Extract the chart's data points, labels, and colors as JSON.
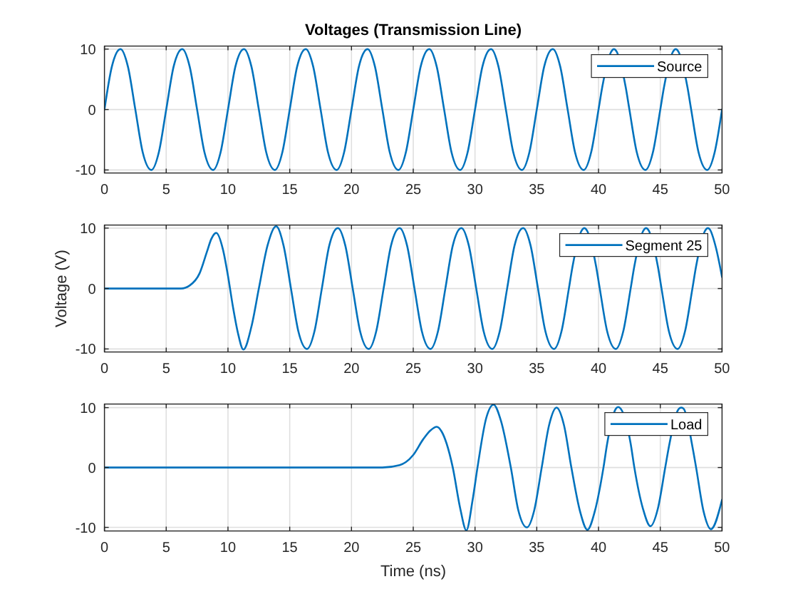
{
  "chart_data": [
    {
      "type": "line",
      "title": "Voltages (Transmission Line)",
      "x": [
        0,
        0.6,
        1.3,
        1.9,
        2.5,
        3.1,
        3.8,
        4.4,
        5,
        5.6,
        6.3,
        6.9,
        7.5,
        8.1,
        8.8,
        9.4,
        10,
        10.6,
        11.3,
        11.9,
        12.5,
        13.1,
        13.8,
        14.4,
        15,
        15.6,
        16.3,
        16.9,
        17.5,
        18.1,
        18.8,
        19.4,
        20,
        20.6,
        21.3,
        21.9,
        22.5,
        23.1,
        23.8,
        24.4,
        25,
        25.6,
        26.3,
        26.9,
        27.5,
        28.1,
        28.8,
        29.4,
        30,
        30.6,
        31.3,
        31.9,
        32.5,
        33.1,
        33.8,
        34.4,
        35,
        35.6,
        36.3,
        36.9,
        37.5,
        38.1,
        38.8,
        39.4,
        40,
        40.3,
        41.1,
        41.25,
        41.4,
        42.2,
        42.5,
        43.1,
        43.8,
        44.4,
        45,
        45.3,
        46.1,
        46.25,
        46.4,
        47.2,
        47.5,
        48.1,
        48.8,
        49.4,
        50
      ],
      "series": [
        {
          "name": "Source",
          "color": "#0072bd",
          "values": [
            0,
            7.1,
            10,
            7.1,
            0,
            -7.1,
            -10,
            -7.1,
            0,
            7.1,
            10,
            7.1,
            0,
            -7.1,
            -10,
            -7.1,
            0,
            7.1,
            10,
            7.1,
            0,
            -7.1,
            -10,
            -7.1,
            0,
            7.1,
            10,
            7.1,
            0,
            -7.1,
            -10,
            -7.1,
            0,
            7.1,
            10,
            7.1,
            0,
            -7.1,
            -10,
            -7.1,
            0,
            7.1,
            10,
            7.1,
            0,
            -7.1,
            -10,
            -7.1,
            0,
            7.1,
            10,
            7.1,
            0,
            -7.1,
            -10,
            -7.1,
            0,
            7.1,
            10,
            7.1,
            0,
            -7.1,
            -10,
            -7.1,
            0,
            3.7,
            9.8,
            10,
            9.8,
            3.7,
            0,
            -7.1,
            -10,
            -7.1,
            0,
            3.7,
            9.8,
            10,
            9.8,
            3.7,
            0,
            -7.1,
            -10,
            -7.1,
            0
          ]
        }
      ],
      "xlim": [
        0,
        50
      ],
      "xticks": [
        0,
        5,
        10,
        15,
        20,
        25,
        30,
        35,
        40,
        45,
        50
      ],
      "ylim": [
        -10.5,
        10.5
      ],
      "yticks": [
        -10,
        0,
        10
      ],
      "grid": true,
      "legend": "top right"
    },
    {
      "type": "line",
      "ylabel": "Voltage (V)",
      "x": [
        0,
        6.2,
        6.9,
        7.7,
        8.3,
        8.65,
        9.05,
        9.6,
        10,
        10.4,
        10.8,
        11.25,
        11.9,
        12.5,
        13.2,
        13.9,
        14.5,
        15.1,
        15.7,
        16.4,
        17,
        17.6,
        18.2,
        18.9,
        19.5,
        20.1,
        20.7,
        21.4,
        22,
        22.6,
        23.2,
        23.9,
        24.5,
        25.1,
        25.7,
        26.4,
        27,
        27.6,
        28.2,
        28.9,
        29.5,
        30.1,
        30.7,
        31.4,
        32,
        32.6,
        33.2,
        33.9,
        34.5,
        35.1,
        35.7,
        36.4,
        37,
        37.6,
        37.9,
        38.7,
        38.85,
        39,
        39.8,
        40.1,
        40.7,
        41.4,
        42,
        42.6,
        42.9,
        43.7,
        43.85,
        44,
        44.8,
        45.1,
        45.7,
        46.4,
        47,
        47.6,
        47.9,
        48.7,
        48.85,
        49,
        49.5,
        50
      ],
      "series": [
        {
          "name": "Segment 25",
          "color": "#0072bd",
          "values": [
            0,
            0,
            0.5,
            2.5,
            6.1,
            8.2,
            9.2,
            6.4,
            2.1,
            -3,
            -7.3,
            -10.1,
            -6.3,
            0,
            7.1,
            10.3,
            7.1,
            0,
            -7.1,
            -10,
            -7.1,
            0,
            7.1,
            10,
            7.1,
            0,
            -7.1,
            -10,
            -7.1,
            0,
            7.1,
            10,
            7.1,
            0,
            -7.1,
            -10,
            -7.1,
            0,
            7.1,
            10,
            7.1,
            0,
            -7.1,
            -10,
            -7.1,
            0,
            7.1,
            10,
            7.1,
            0,
            -7.1,
            -10,
            -7.1,
            0,
            3.7,
            9.8,
            10,
            9.8,
            3.7,
            0,
            -7.1,
            -10,
            -7.1,
            0,
            3.7,
            9.8,
            10,
            9.8,
            3.7,
            0,
            -7.1,
            -10,
            -7.1,
            0,
            3.7,
            9.8,
            10,
            9.8,
            6.8,
            1.9
          ]
        }
      ],
      "xlim": [
        0,
        50
      ],
      "xticks": [
        0,
        5,
        10,
        15,
        20,
        25,
        30,
        35,
        40,
        45,
        50
      ],
      "ylim": [
        -10.5,
        10.5
      ],
      "yticks": [
        -10,
        0,
        10
      ],
      "grid": true,
      "legend": "top right"
    },
    {
      "type": "line",
      "xlabel": "Time (ns)",
      "x": [
        0,
        22.5,
        23.9,
        24.4,
        25,
        25.8,
        26.4,
        26.9,
        27.3,
        27.7,
        28.2,
        28.8,
        29.3,
        29.8,
        30.2,
        30.9,
        31.5,
        32.1,
        32.9,
        33.5,
        34.2,
        34.8,
        35.4,
        36,
        36.6,
        37.2,
        37.8,
        38.5,
        39.1,
        39.7,
        40.4,
        40.7,
        41.4,
        41.6,
        41.8,
        42.6,
        42.9,
        43.6,
        44.2,
        44.8,
        45.4,
        45.7,
        46.5,
        46.7,
        46.9,
        47.6,
        47.9,
        48.5,
        49.1,
        50
      ],
      "series": [
        {
          "name": "Load",
          "color": "#0072bd",
          "values": [
            0,
            0,
            0.4,
            0.9,
            2.1,
            4.7,
            6.2,
            6.8,
            6,
            4,
            0,
            -6.8,
            -10.5,
            -5.5,
            0,
            8.2,
            10.5,
            7.8,
            0,
            -7.1,
            -10,
            -7.1,
            0,
            7.1,
            10,
            7.1,
            0,
            -7.3,
            -10.4,
            -7.3,
            0,
            4,
            9.8,
            10.1,
            9.8,
            4,
            0,
            -6.9,
            -9.8,
            -6.9,
            0,
            3.5,
            9.8,
            10,
            9.8,
            3.5,
            0,
            -7.3,
            -10.3,
            -5.4
          ]
        }
      ],
      "xlim": [
        0,
        50
      ],
      "xticks": [
        0,
        5,
        10,
        15,
        20,
        25,
        30,
        35,
        40,
        45,
        50
      ],
      "ylim": [
        -10.6,
        10.6
      ],
      "yticks": [
        -10,
        0,
        10
      ],
      "grid": true,
      "legend": "top right"
    }
  ]
}
